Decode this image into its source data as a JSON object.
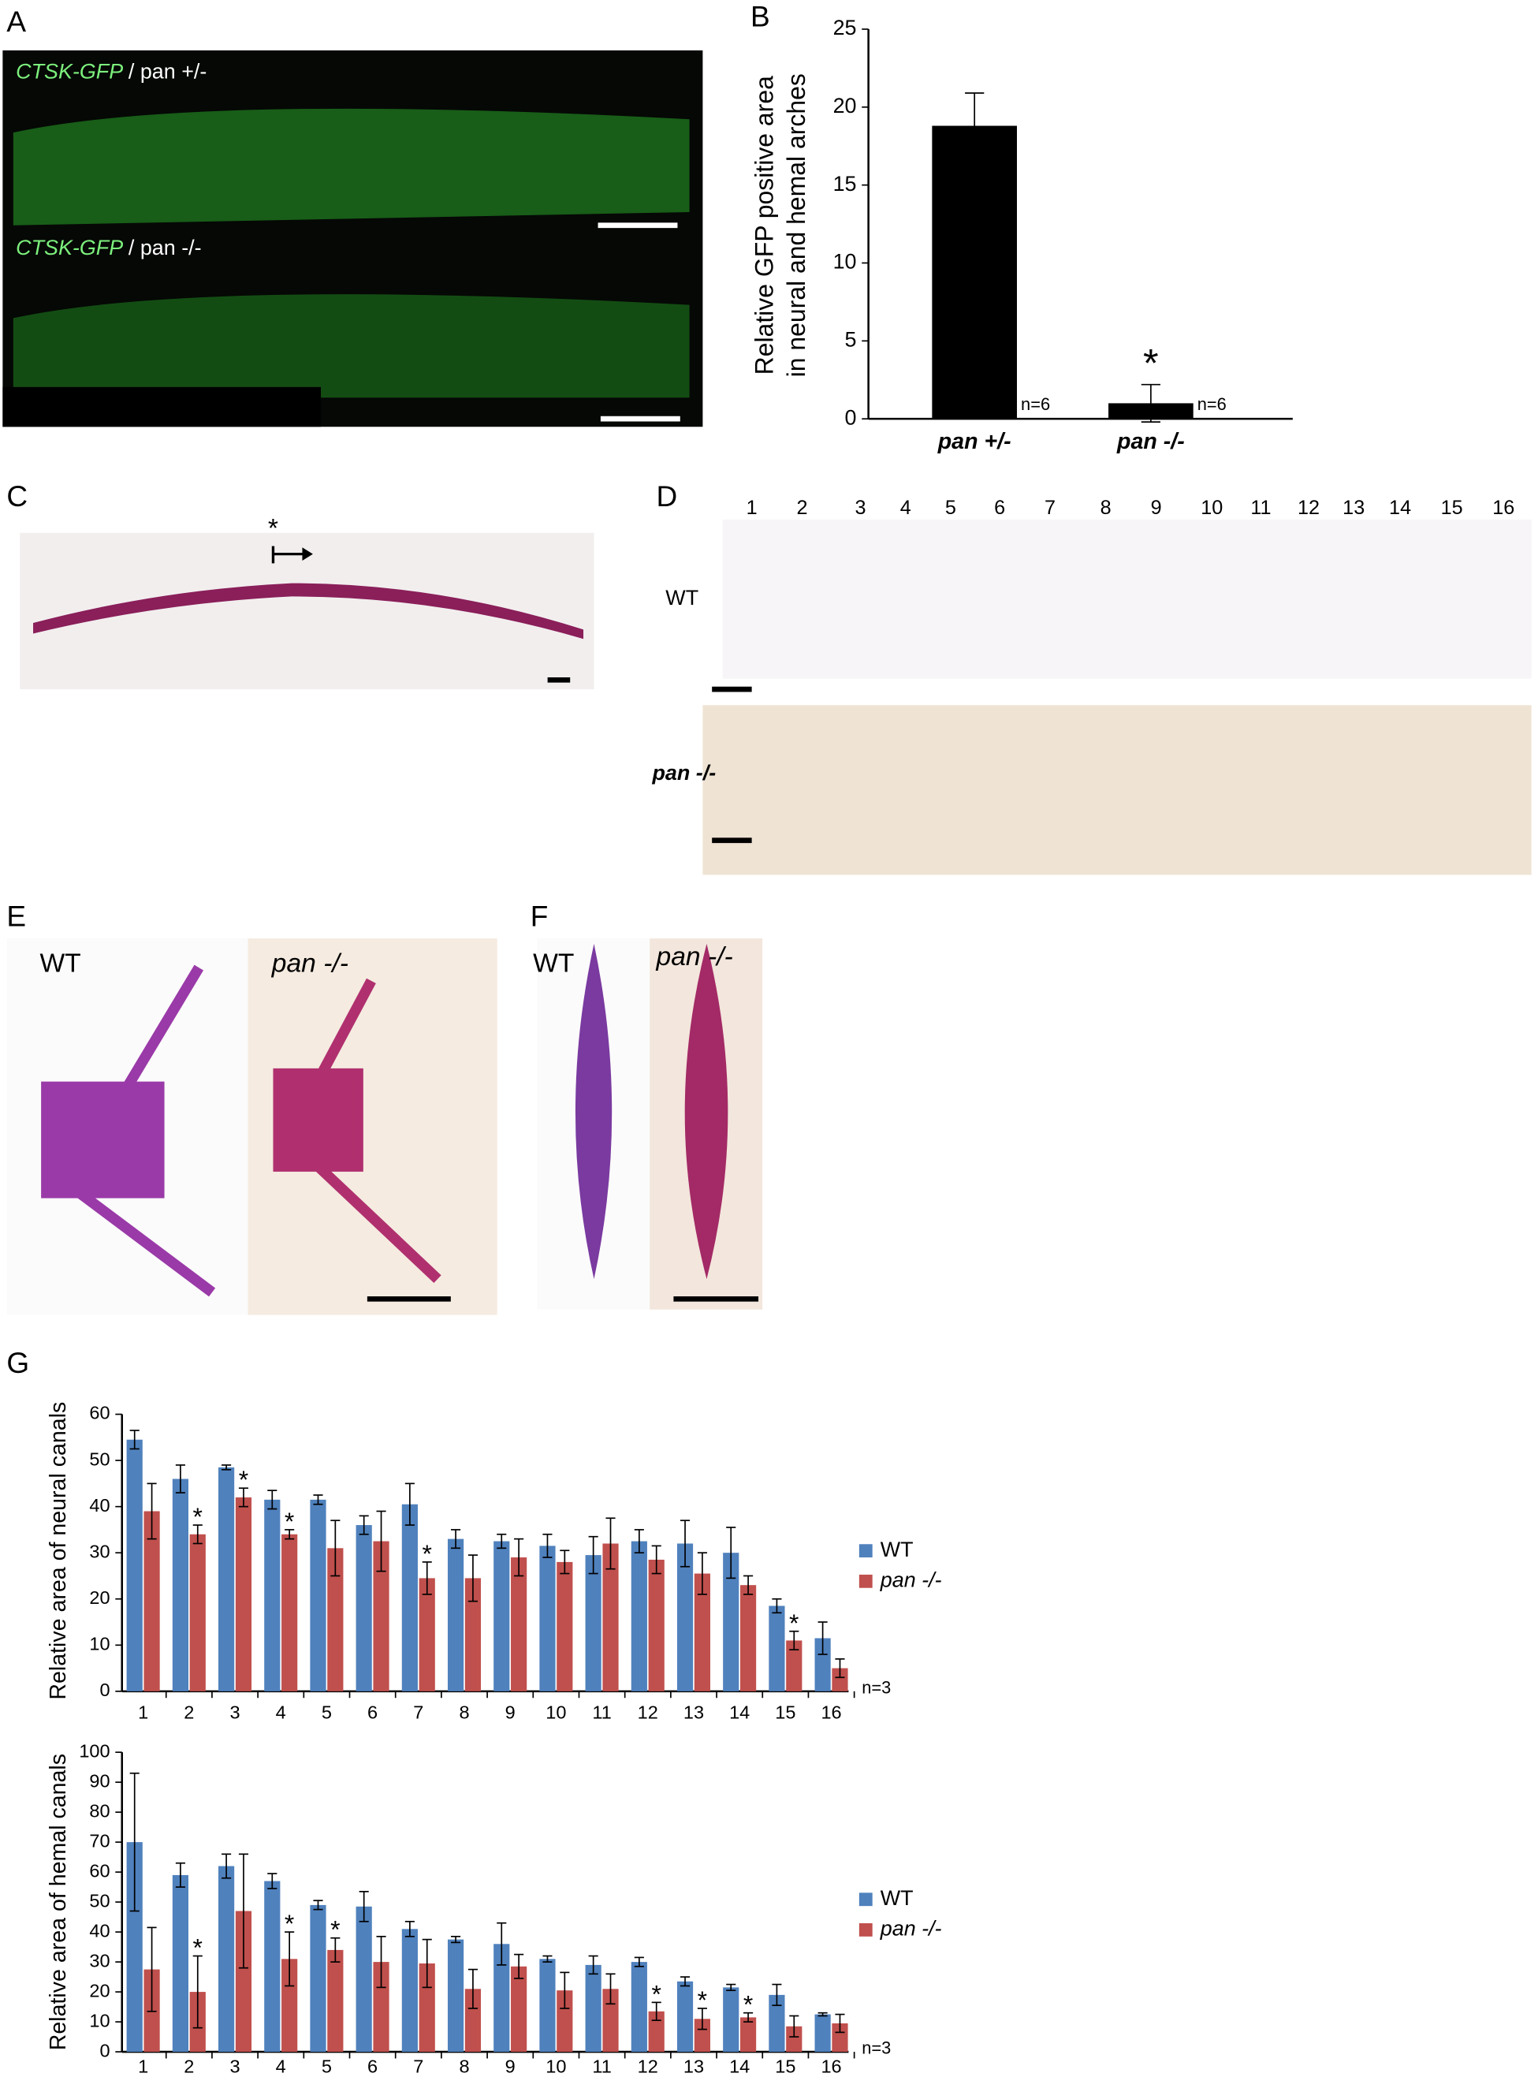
{
  "panels": {
    "letters": [
      "A",
      "B",
      "C",
      "D",
      "E",
      "F",
      "G"
    ],
    "A": {
      "images": [
        {
          "marker": "CTSK-GFP",
          "genotype": "/ pan +/-"
        },
        {
          "marker": "CTSK-GFP",
          "genotype": "/ pan -/-"
        }
      ]
    },
    "C": {
      "annotation": "*"
    },
    "D": {
      "columns": [
        "1",
        "2",
        "3",
        "4",
        "5",
        "6",
        "7",
        "8",
        "9",
        "10",
        "11",
        "12",
        "13",
        "14",
        "15",
        "16"
      ],
      "rows": [
        "WT",
        "pan -/-"
      ]
    },
    "E": {
      "labels": [
        "WT",
        "pan -/-"
      ]
    },
    "F": {
      "labels": [
        "WT",
        "pan -/-"
      ]
    }
  },
  "chart_data": [
    {
      "type": "bar",
      "ylabel": [
        "Relative GFP positive area",
        "in neural and hemal arches"
      ],
      "categories": [
        "pan +/-",
        "pan -/-"
      ],
      "values": [
        18.8,
        1.0
      ],
      "errors": [
        2.1,
        1.2
      ],
      "color": "#000000",
      "ylim": [
        0,
        25
      ],
      "yticks": [
        0,
        5,
        10,
        15,
        20,
        25
      ],
      "annotations": [
        {
          "text": "n=6",
          "x": "pan +/-"
        },
        {
          "text": "n=6",
          "x": "pan -/-"
        },
        {
          "text": "*",
          "x": "pan -/-"
        }
      ]
    },
    {
      "type": "bar",
      "ylabel": [
        "Relative area of neural canals"
      ],
      "categories": [
        "1",
        "2",
        "3",
        "4",
        "5",
        "6",
        "7",
        "8",
        "9",
        "10",
        "11",
        "12",
        "13",
        "14",
        "15",
        "16"
      ],
      "series": [
        {
          "name": "WT",
          "color": "#4f81bd",
          "values": [
            54.5,
            46,
            48.5,
            41.5,
            41.5,
            36,
            40.5,
            33,
            32.5,
            31.5,
            29.5,
            32.5,
            32,
            30,
            18.5,
            11.5
          ],
          "errors": [
            2,
            3,
            0.5,
            2,
            1,
            2,
            4.5,
            2,
            1.5,
            2.5,
            4,
            2.5,
            5,
            5.5,
            1.5,
            3.5
          ]
        },
        {
          "name": "pan -/-",
          "color": "#c0504d",
          "values": [
            39,
            34,
            42,
            34,
            31,
            32.5,
            24.5,
            24.5,
            29,
            28,
            32,
            28.5,
            25.5,
            23,
            11,
            5
          ],
          "errors": [
            6,
            2,
            2,
            1,
            6,
            6.5,
            3.5,
            5,
            4,
            2.5,
            5.5,
            3,
            4.5,
            2,
            2,
            2
          ]
        }
      ],
      "ylim": [
        0,
        60
      ],
      "yticks": [
        0,
        10,
        20,
        30,
        40,
        50,
        60
      ],
      "legend": "right",
      "note": "n=3",
      "annotations": [
        {
          "text": "*",
          "x": "2",
          "series": "pan -/-"
        },
        {
          "text": "*",
          "x": "3",
          "series": "pan -/-"
        },
        {
          "text": "*",
          "x": "4",
          "series": "pan -/-"
        },
        {
          "text": "*",
          "x": "7",
          "series": "pan -/-"
        },
        {
          "text": "*",
          "x": "15",
          "series": "pan -/-"
        }
      ]
    },
    {
      "type": "bar",
      "ylabel": [
        "Relative area of hemal canals"
      ],
      "categories": [
        "1",
        "2",
        "3",
        "4",
        "5",
        "6",
        "7",
        "8",
        "9",
        "10",
        "11",
        "12",
        "13",
        "14",
        "15",
        "16"
      ],
      "series": [
        {
          "name": "WT",
          "color": "#4f81bd",
          "values": [
            70,
            59,
            62,
            57,
            49,
            48.5,
            41,
            37.5,
            36,
            31,
            29,
            30,
            23.5,
            21.5,
            19,
            12.5
          ],
          "errors": [
            23,
            4,
            4,
            2.5,
            1.5,
            5,
            2.5,
            1,
            7,
            1,
            3,
            1.5,
            1.5,
            1,
            3.5,
            0.5
          ]
        },
        {
          "name": "pan -/-",
          "color": "#c0504d",
          "values": [
            27.5,
            20,
            47,
            31,
            34,
            30,
            29.5,
            21,
            28.5,
            20.5,
            21,
            13.5,
            11,
            11.5,
            8.5,
            9.5
          ],
          "errors": [
            14,
            12,
            19,
            9,
            4,
            8.5,
            8,
            6.5,
            4,
            6,
            5,
            3,
            3.5,
            1.5,
            3.5,
            3
          ]
        }
      ],
      "ylim": [
        0,
        100
      ],
      "yticks": [
        0,
        10,
        20,
        30,
        40,
        50,
        60,
        70,
        80,
        90,
        100
      ],
      "legend": "right",
      "note": "n=3",
      "annotations": [
        {
          "text": "*",
          "x": "2",
          "series": "pan -/-"
        },
        {
          "text": "*",
          "x": "4",
          "series": "pan -/-"
        },
        {
          "text": "*",
          "x": "5",
          "series": "pan -/-"
        },
        {
          "text": "*",
          "x": "12",
          "series": "pan -/-"
        },
        {
          "text": "*",
          "x": "13",
          "series": "pan -/-"
        },
        {
          "text": "*",
          "x": "14",
          "series": "pan -/-"
        }
      ]
    }
  ]
}
